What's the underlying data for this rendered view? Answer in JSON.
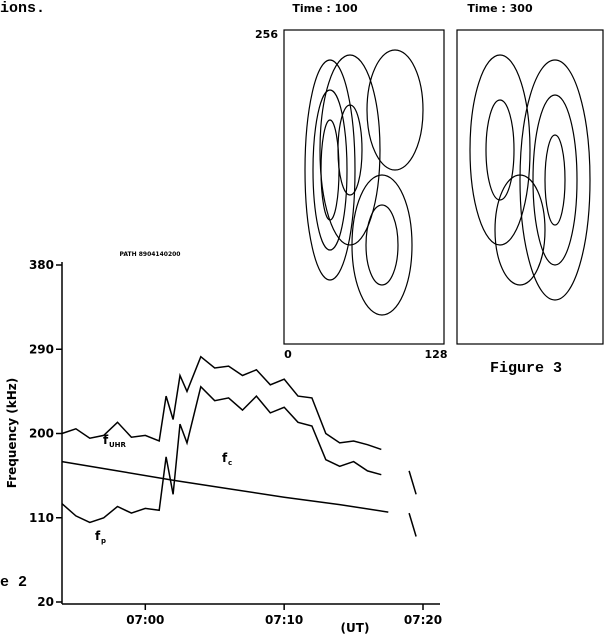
{
  "caption_fragment": "ions.",
  "figure3": {
    "panel_titles": [
      "Time : 100",
      "Time : 300"
    ],
    "y_max_label": "256",
    "x_min_label": "0",
    "x_max_label": "128",
    "caption": "Figure 3"
  },
  "figure2_fragment": "e 2",
  "chart_data": {
    "type": "line",
    "title": "PATH 8904140200",
    "y_label": "Frequency (kHz)",
    "x_label": "(UT)",
    "ylim": [
      20,
      380
    ],
    "yticks": [
      20,
      110,
      200,
      290,
      380
    ],
    "xlim": [
      414,
      440
    ],
    "xticks": [
      {
        "value": 420,
        "label": "07:00"
      },
      {
        "value": 430,
        "label": "07:10"
      },
      {
        "value": 440,
        "label": "07:20"
      }
    ],
    "series": [
      {
        "color": "#000000",
        "x": [
          414,
          415,
          416,
          417,
          418,
          419,
          420,
          421,
          421.5,
          422,
          422.5,
          423,
          424,
          425,
          426,
          427,
          428,
          429,
          430,
          431,
          432,
          433,
          434,
          435,
          436,
          437,
          438.5,
          439,
          439.5
        ],
        "values": [
          200,
          205,
          195,
          198,
          212,
          196,
          198,
          192,
          240,
          215,
          262,
          245,
          282,
          270,
          272,
          262,
          268,
          252,
          258,
          240,
          238,
          200,
          190,
          192,
          188,
          183,
          null,
          160,
          135
        ]
      },
      {
        "color": "#000000",
        "x": [
          414,
          415,
          416,
          417,
          418,
          419,
          420,
          421,
          421.5,
          422,
          422.5,
          423,
          424,
          425,
          426,
          427,
          428,
          429,
          430,
          431,
          432,
          433,
          434,
          435,
          436,
          437,
          438.5,
          439,
          439.5
        ],
        "values": [
          125,
          112,
          105,
          110,
          122,
          115,
          120,
          118,
          175,
          135,
          210,
          190,
          250,
          235,
          238,
          225,
          240,
          222,
          228,
          212,
          208,
          172,
          165,
          170,
          160,
          156,
          null,
          115,
          90
        ]
      },
      {
        "color": "#000000",
        "x": [
          414,
          418,
          422,
          426,
          430,
          434,
          437.5
        ],
        "values": [
          170,
          160,
          150,
          141,
          132,
          124,
          116
        ]
      }
    ],
    "annotations": [
      {
        "text": "f",
        "sub": "UHR"
      },
      {
        "text": "f",
        "sub": "c"
      },
      {
        "text": "f",
        "sub": "p"
      }
    ]
  }
}
